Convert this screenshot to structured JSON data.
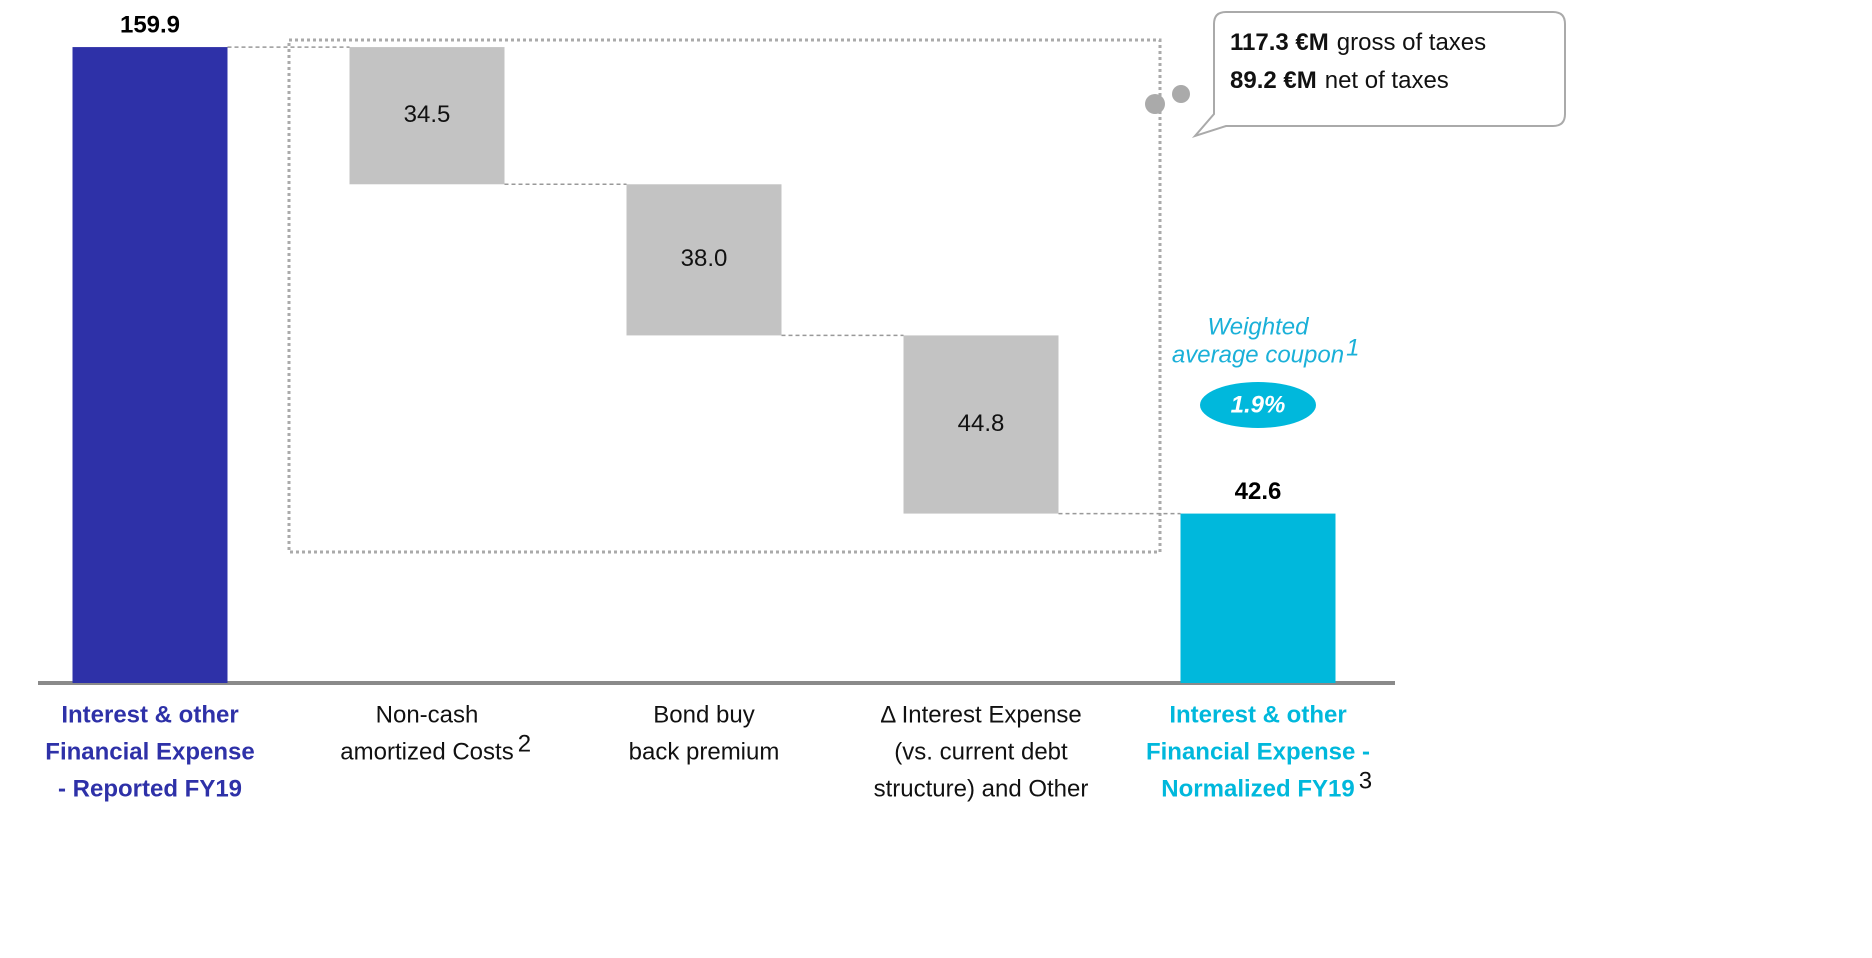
{
  "chart_data": {
    "type": "waterfall",
    "categories": [
      [
        "Interest & other",
        "Financial Expense",
        "- Reported FY19"
      ],
      [
        "Non-cash",
        "amortized Costs"
      ],
      [
        "Bond buy",
        "back premium"
      ],
      [
        "Δ Interest Expense",
        "(vs. current debt",
        "structure) and Other"
      ],
      [
        "Interest & other",
        "Financial Expense -",
        "Normalized FY19"
      ]
    ],
    "category_notes": {
      "1": "2",
      "4": "3"
    },
    "category_colors": [
      "#2e31a8",
      "#111111",
      "#111111",
      "#111111",
      "#00b8dc"
    ],
    "measure": [
      "total",
      "decrease",
      "decrease",
      "decrease",
      "total"
    ],
    "values": [
      159.9,
      34.5,
      38.0,
      44.8,
      42.6
    ],
    "value_labels": [
      "159.9",
      "34.5",
      "38.0",
      "44.8",
      "42.6"
    ],
    "colors": [
      "#2e31a8",
      "#c3c3c3",
      "#c3c3c3",
      "#c3c3c3",
      "#00b8dc"
    ],
    "ylim": [
      0,
      160
    ],
    "annotations": {
      "callout": [
        {
          "bold": "117.3 €M",
          "text": "gross of taxes"
        },
        {
          "bold": "89.2 €M",
          "text": "net of taxes"
        }
      ],
      "coupon_label": [
        "Weighted",
        "average coupon"
      ],
      "coupon_note": "1",
      "coupon": {
        "value": 1.9,
        "label": "1.9%"
      }
    }
  }
}
